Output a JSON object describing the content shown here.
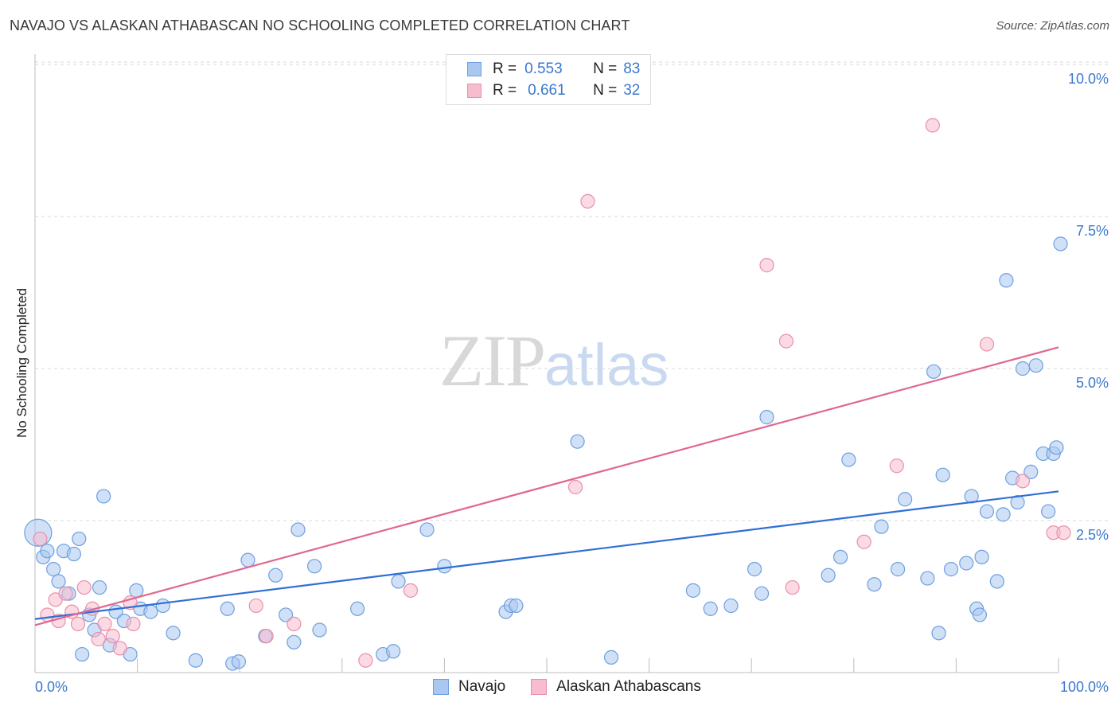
{
  "header": {
    "title": "NAVAJO VS ALASKAN ATHABASCAN NO SCHOOLING COMPLETED CORRELATION CHART",
    "source": "Source: ZipAtlas.com"
  },
  "watermark": {
    "zip": "ZIP",
    "atlas": "atlas"
  },
  "legend": {
    "navajo": {
      "r_label": "R =",
      "r_value": "0.553",
      "n_label": "N =",
      "n_value": "83"
    },
    "athabascan": {
      "r_label": "R =",
      "r_value": "0.661",
      "n_label": "N =",
      "n_value": "32"
    }
  },
  "colors": {
    "navajo_fill": "#a9c8f1",
    "navajo_stroke": "#6e9fe0",
    "navajo_line": "#2f6fd6",
    "athabascan_fill": "#f7bccd",
    "athabascan_stroke": "#e890ab",
    "athabascan_line": "#e0678f",
    "tick_text": "#3b78d0",
    "grid": "#d9d9d9"
  },
  "chart_data": {
    "type": "scatter",
    "title": "NAVAJO VS ALASKAN ATHABASCAN NO SCHOOLING COMPLETED CORRELATION CHART",
    "xlabel": "",
    "ylabel": "No Schooling Completed",
    "xlim": [
      0,
      100
    ],
    "ylim": [
      0,
      10.5
    ],
    "x_tick_labels": [
      "0.0%",
      "100.0%"
    ],
    "y_ticks": [
      2.5,
      5.0,
      7.5,
      10.0
    ],
    "y_tick_labels": [
      "2.5%",
      "5.0%",
      "7.5%",
      "10.0%"
    ],
    "grid": "horizontal dashed",
    "legend_position": "bottom",
    "series": [
      {
        "name": "Navajo",
        "r": 0.553,
        "n": 83,
        "trend": {
          "x": [
            0,
            100
          ],
          "y": [
            0.88,
            2.98
          ]
        },
        "points": [
          [
            0.3,
            2.3
          ],
          [
            0.8,
            1.9
          ],
          [
            1.2,
            2.0
          ],
          [
            1.8,
            1.7
          ],
          [
            2.3,
            1.5
          ],
          [
            2.8,
            2.0
          ],
          [
            3.3,
            1.3
          ],
          [
            3.8,
            1.95
          ],
          [
            4.3,
            2.2
          ],
          [
            4.6,
            0.3
          ],
          [
            5.3,
            0.95
          ],
          [
            5.8,
            0.7
          ],
          [
            6.3,
            1.4
          ],
          [
            6.7,
            2.9
          ],
          [
            7.3,
            0.45
          ],
          [
            7.9,
            1.0
          ],
          [
            8.7,
            0.85
          ],
          [
            9.3,
            0.3
          ],
          [
            9.9,
            1.35
          ],
          [
            10.3,
            1.05
          ],
          [
            11.3,
            1.0
          ],
          [
            12.5,
            1.1
          ],
          [
            13.5,
            0.65
          ],
          [
            15.7,
            0.2
          ],
          [
            18.8,
            1.05
          ],
          [
            19.3,
            0.15
          ],
          [
            19.9,
            0.18
          ],
          [
            20.8,
            1.85
          ],
          [
            22.5,
            0.6
          ],
          [
            23.5,
            1.6
          ],
          [
            24.5,
            0.95
          ],
          [
            25.3,
            0.5
          ],
          [
            25.7,
            2.35
          ],
          [
            27.3,
            1.75
          ],
          [
            27.8,
            0.7
          ],
          [
            31.5,
            1.05
          ],
          [
            34.0,
            0.3
          ],
          [
            35.0,
            0.35
          ],
          [
            35.5,
            1.5
          ],
          [
            38.3,
            2.35
          ],
          [
            40.0,
            1.75
          ],
          [
            46.0,
            1.0
          ],
          [
            46.5,
            1.1
          ],
          [
            47.0,
            1.1
          ],
          [
            53.0,
            3.8
          ],
          [
            56.3,
            0.25
          ],
          [
            64.3,
            1.35
          ],
          [
            66.0,
            1.05
          ],
          [
            68.0,
            1.1
          ],
          [
            70.3,
            1.7
          ],
          [
            71.0,
            1.3
          ],
          [
            71.5,
            4.2
          ],
          [
            77.5,
            1.6
          ],
          [
            78.7,
            1.9
          ],
          [
            79.5,
            3.5
          ],
          [
            82.0,
            1.45
          ],
          [
            82.7,
            2.4
          ],
          [
            84.3,
            1.7
          ],
          [
            85.0,
            2.85
          ],
          [
            87.2,
            1.55
          ],
          [
            87.8,
            4.95
          ],
          [
            88.3,
            0.65
          ],
          [
            88.7,
            3.25
          ],
          [
            89.5,
            1.7
          ],
          [
            91.0,
            1.8
          ],
          [
            91.5,
            2.9
          ],
          [
            92.0,
            1.05
          ],
          [
            92.3,
            0.95
          ],
          [
            92.5,
            1.9
          ],
          [
            93.0,
            2.65
          ],
          [
            94.0,
            1.5
          ],
          [
            94.6,
            2.6
          ],
          [
            94.9,
            6.45
          ],
          [
            95.5,
            3.2
          ],
          [
            96.0,
            2.8
          ],
          [
            96.5,
            5.0
          ],
          [
            97.3,
            3.3
          ],
          [
            97.8,
            5.05
          ],
          [
            98.5,
            3.6
          ],
          [
            99.0,
            2.65
          ],
          [
            99.5,
            3.6
          ],
          [
            99.8,
            3.7
          ],
          [
            100.2,
            7.05
          ]
        ]
      },
      {
        "name": "Alaskan Athabascans",
        "r": 0.661,
        "n": 32,
        "trend": {
          "x": [
            0,
            100
          ],
          "y": [
            0.78,
            5.35
          ]
        },
        "points": [
          [
            0.5,
            2.2
          ],
          [
            1.2,
            0.95
          ],
          [
            2.0,
            1.2
          ],
          [
            2.3,
            0.85
          ],
          [
            3.0,
            1.3
          ],
          [
            3.6,
            1.0
          ],
          [
            4.2,
            0.8
          ],
          [
            4.8,
            1.4
          ],
          [
            5.6,
            1.05
          ],
          [
            6.2,
            0.55
          ],
          [
            6.8,
            0.8
          ],
          [
            7.6,
            0.6
          ],
          [
            8.3,
            0.4
          ],
          [
            9.3,
            1.15
          ],
          [
            9.6,
            0.8
          ],
          [
            21.6,
            1.1
          ],
          [
            22.6,
            0.6
          ],
          [
            25.3,
            0.8
          ],
          [
            32.3,
            0.2
          ],
          [
            36.7,
            1.35
          ],
          [
            52.8,
            3.05
          ],
          [
            54.0,
            7.75
          ],
          [
            71.5,
            6.7
          ],
          [
            73.4,
            5.45
          ],
          [
            74.0,
            1.4
          ],
          [
            81.0,
            2.15
          ],
          [
            84.2,
            3.4
          ],
          [
            87.7,
            9.0
          ],
          [
            93.0,
            5.4
          ],
          [
            96.5,
            3.15
          ],
          [
            99.5,
            2.3
          ],
          [
            100.5,
            2.3
          ]
        ]
      }
    ]
  },
  "bottom_legend": {
    "navajo": "Navajo",
    "athabascan": "Alaskan Athabascans"
  }
}
